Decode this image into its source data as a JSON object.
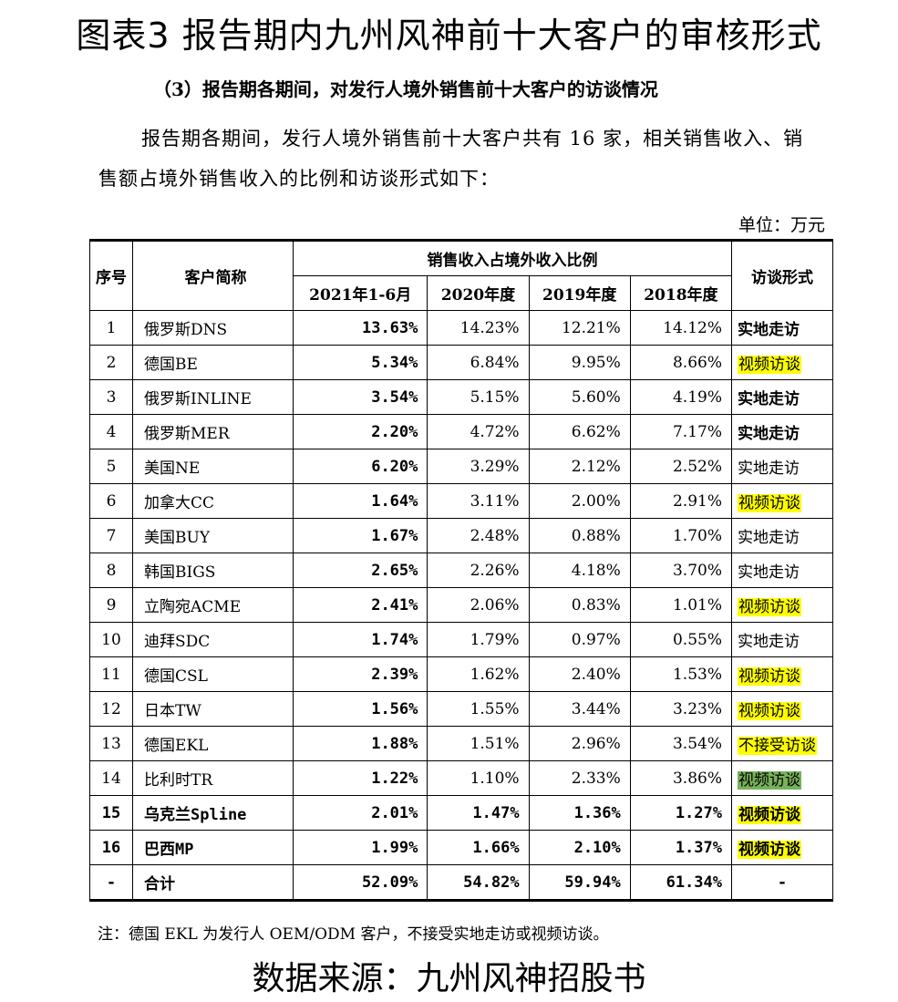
{
  "title": "图表3   报告期内九州风神前十大客户的审核形式",
  "subtitle": "（3）报告期各期间，对发行人境外销售前十大客户的访谈情况",
  "paragraph": {
    "line1": "报告期各期间，发行人境外销售前十大客户共有 16 家，相关销售收入、销",
    "line2": "售额占境外销售收入的比例和访谈形式如下："
  },
  "unit": "单位：万元",
  "table": {
    "headers": {
      "index": "序号",
      "customer": "客户简称",
      "ratio_group": "销售收入占境外收入比例",
      "periods": [
        "2021年1-6月",
        "2020年度",
        "2019年度",
        "2018年度"
      ],
      "interview": "访谈形式"
    },
    "rows": [
      {
        "idx": "1",
        "name": "俄罗斯DNS",
        "v1": "13.63%",
        "v2": "14.23%",
        "v3": "12.21%",
        "v4": "14.12%",
        "form": "实地走访",
        "style": "bold"
      },
      {
        "idx": "2",
        "name": "德国BE",
        "v1": "5.34%",
        "v2": "6.84%",
        "v3": "9.95%",
        "v4": "8.66%",
        "form": "视频访谈",
        "style": "yellow"
      },
      {
        "idx": "3",
        "name": "俄罗斯INLINE",
        "v1": "3.54%",
        "v2": "5.15%",
        "v3": "5.60%",
        "v4": "4.19%",
        "form": "实地走访",
        "style": "bold"
      },
      {
        "idx": "4",
        "name": "俄罗斯MER",
        "v1": "2.20%",
        "v2": "4.72%",
        "v3": "6.62%",
        "v4": "7.17%",
        "form": "实地走访",
        "style": "bold"
      },
      {
        "idx": "5",
        "name": "美国NE",
        "v1": "6.20%",
        "v2": "3.29%",
        "v3": "2.12%",
        "v4": "2.52%",
        "form": "实地走访",
        "style": "plain"
      },
      {
        "idx": "6",
        "name": "加拿大CC",
        "v1": "1.64%",
        "v2": "3.11%",
        "v3": "2.00%",
        "v4": "2.91%",
        "form": "视频访谈",
        "style": "yellow"
      },
      {
        "idx": "7",
        "name": "美国BUY",
        "v1": "1.67%",
        "v2": "2.48%",
        "v3": "0.88%",
        "v4": "1.70%",
        "form": "实地走访",
        "style": "plain"
      },
      {
        "idx": "8",
        "name": "韩国BIGS",
        "v1": "2.65%",
        "v2": "2.26%",
        "v3": "4.18%",
        "v4": "3.70%",
        "form": "实地走访",
        "style": "plain"
      },
      {
        "idx": "9",
        "name": "立陶宛ACME",
        "v1": "2.41%",
        "v2": "2.06%",
        "v3": "0.83%",
        "v4": "1.01%",
        "form": "视频访谈",
        "style": "yellow"
      },
      {
        "idx": "10",
        "name": "迪拜SDC",
        "v1": "1.74%",
        "v2": "1.79%",
        "v3": "0.97%",
        "v4": "0.55%",
        "form": "实地走访",
        "style": "plain"
      },
      {
        "idx": "11",
        "name": "德国CSL",
        "v1": "2.39%",
        "v2": "1.62%",
        "v3": "2.40%",
        "v4": "1.53%",
        "form": "视频访谈",
        "style": "yellow"
      },
      {
        "idx": "12",
        "name": "日本TW",
        "v1": "1.56%",
        "v2": "1.55%",
        "v3": "3.44%",
        "v4": "3.23%",
        "form": "视频访谈",
        "style": "yellow"
      },
      {
        "idx": "13",
        "name": "德国EKL",
        "v1": "1.88%",
        "v2": "1.51%",
        "v3": "2.96%",
        "v4": "3.54%",
        "form": "不接受访谈",
        "style": "yellow"
      },
      {
        "idx": "14",
        "name": "比利时TR",
        "v1": "1.22%",
        "v2": "1.10%",
        "v3": "2.33%",
        "v4": "3.86%",
        "form": "视频访谈",
        "style": "green"
      },
      {
        "idx": "15",
        "name": "乌克兰Spline",
        "v1": "2.01%",
        "v2": "1.47%",
        "v3": "1.36%",
        "v4": "1.27%",
        "form": "视频访谈",
        "style": "yellow-bold",
        "rowbold": true
      },
      {
        "idx": "16",
        "name": "巴西MP",
        "v1": "1.99%",
        "v2": "1.66%",
        "v3": "2.10%",
        "v4": "1.37%",
        "form": "视频访谈",
        "style": "yellow-bold",
        "rowbold": true
      },
      {
        "idx": "-",
        "name": "合计",
        "v1": "52.09%",
        "v2": "54.82%",
        "v3": "59.94%",
        "v4": "61.34%",
        "form": "-",
        "style": "plain",
        "rowbold": true,
        "total": true
      }
    ]
  },
  "note": "注：德国 EKL 为发行人 OEM/ODM 客户，不接受实地走访或视频访谈。",
  "source": "数据来源：九州风神招股书",
  "colors": {
    "highlight_yellow": "#ffff00",
    "highlight_green": "#77b25a"
  }
}
